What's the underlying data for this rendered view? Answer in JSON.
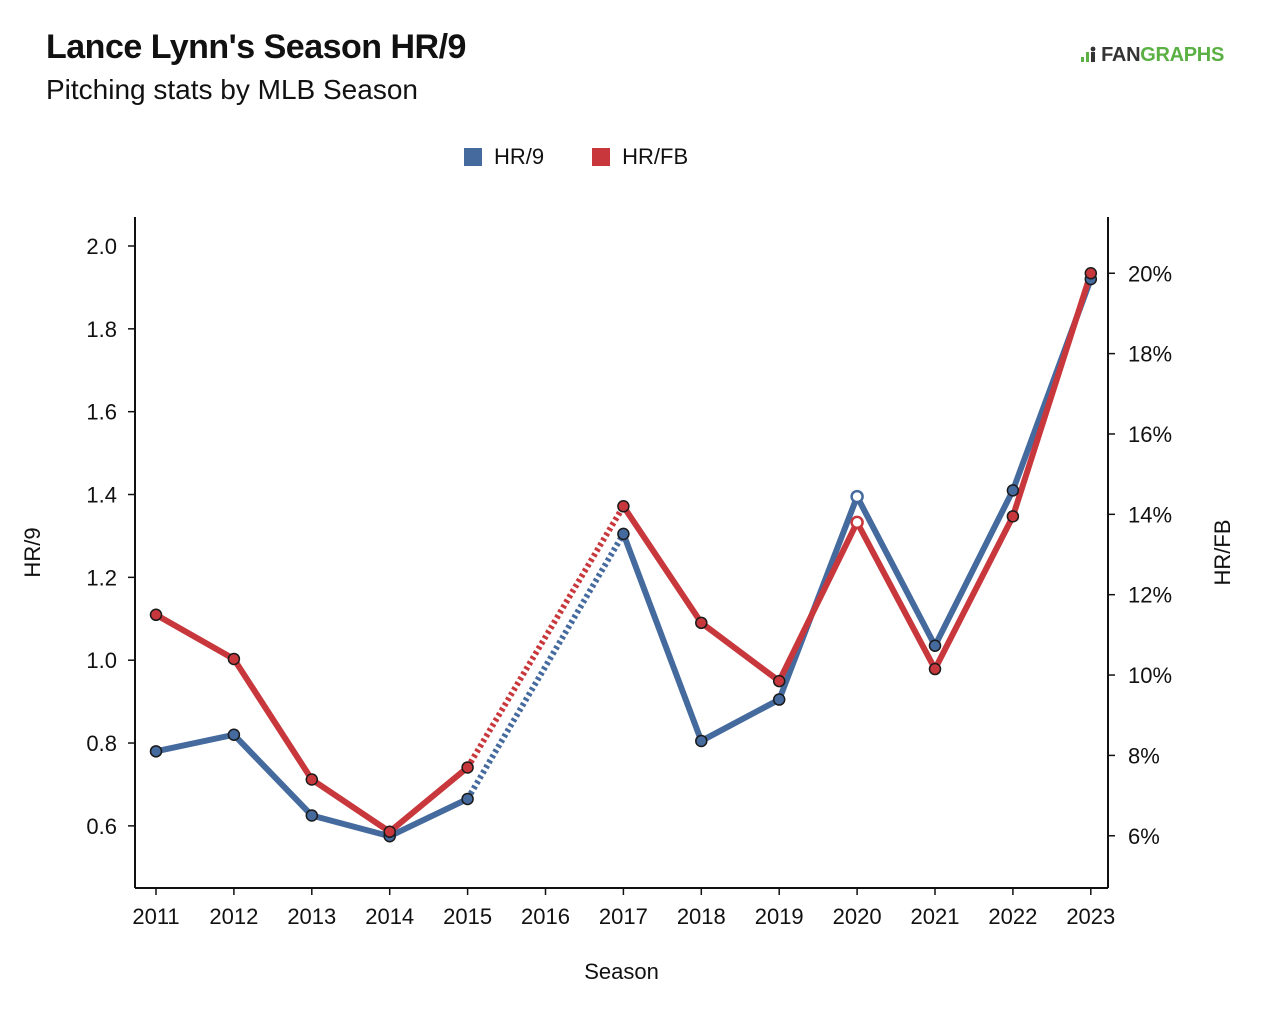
{
  "header": {
    "title": "Lance Lynn's Season HR/9",
    "subtitle": "Pitching stats by MLB Season"
  },
  "logo": {
    "fan": "FAN",
    "graphs": "GRAPHS",
    "icon": "fangraphs-logo-icon"
  },
  "colors": {
    "hr9": "#456a9e",
    "hrfb": "#c8373b",
    "axis": "#111111",
    "logo_green": "#5ab043"
  },
  "chart_data": {
    "type": "line",
    "title": "Lance Lynn's Season HR/9",
    "subtitle": "Pitching stats by MLB Season",
    "xlabel": "Season",
    "ylabel": "HR/9",
    "y2label": "HR/FB",
    "categories": [
      "2011",
      "2012",
      "2013",
      "2014",
      "2015",
      "2016",
      "2017",
      "2018",
      "2019",
      "2020",
      "2021",
      "2022",
      "2023"
    ],
    "ylim": [
      0.45,
      2.07
    ],
    "y2lim": [
      4.7,
      21.4
    ],
    "yticks": [
      0.6,
      0.8,
      1.0,
      1.2,
      1.4,
      1.6,
      1.8,
      2.0
    ],
    "ytick_labels": [
      "0.6",
      "0.8",
      "1.0",
      "1.2",
      "1.4",
      "1.6",
      "1.8",
      "2.0"
    ],
    "y2ticks": [
      6,
      8,
      10,
      12,
      14,
      16,
      18,
      20
    ],
    "y2tick_labels": [
      "6%",
      "8%",
      "10%",
      "12%",
      "14%",
      "16%",
      "18%",
      "20%"
    ],
    "legend_position": "top-center",
    "grid": false,
    "missing_season_note": "2016 has no data; gap drawn dotted",
    "series": [
      {
        "name": "HR/9",
        "axis": "left",
        "color": "#456a9e",
        "values": [
          0.78,
          0.82,
          0.625,
          0.575,
          0.665,
          null,
          1.305,
          0.805,
          0.905,
          1.395,
          1.035,
          1.41,
          1.92
        ],
        "hollow": [
          "2020"
        ]
      },
      {
        "name": "HR/FB",
        "axis": "right",
        "color": "#c8373b",
        "values": [
          11.5,
          10.4,
          7.4,
          6.1,
          7.7,
          null,
          14.2,
          11.3,
          9.85,
          13.8,
          10.15,
          13.95,
          20.0
        ],
        "hollow": [
          "2020"
        ]
      }
    ]
  }
}
